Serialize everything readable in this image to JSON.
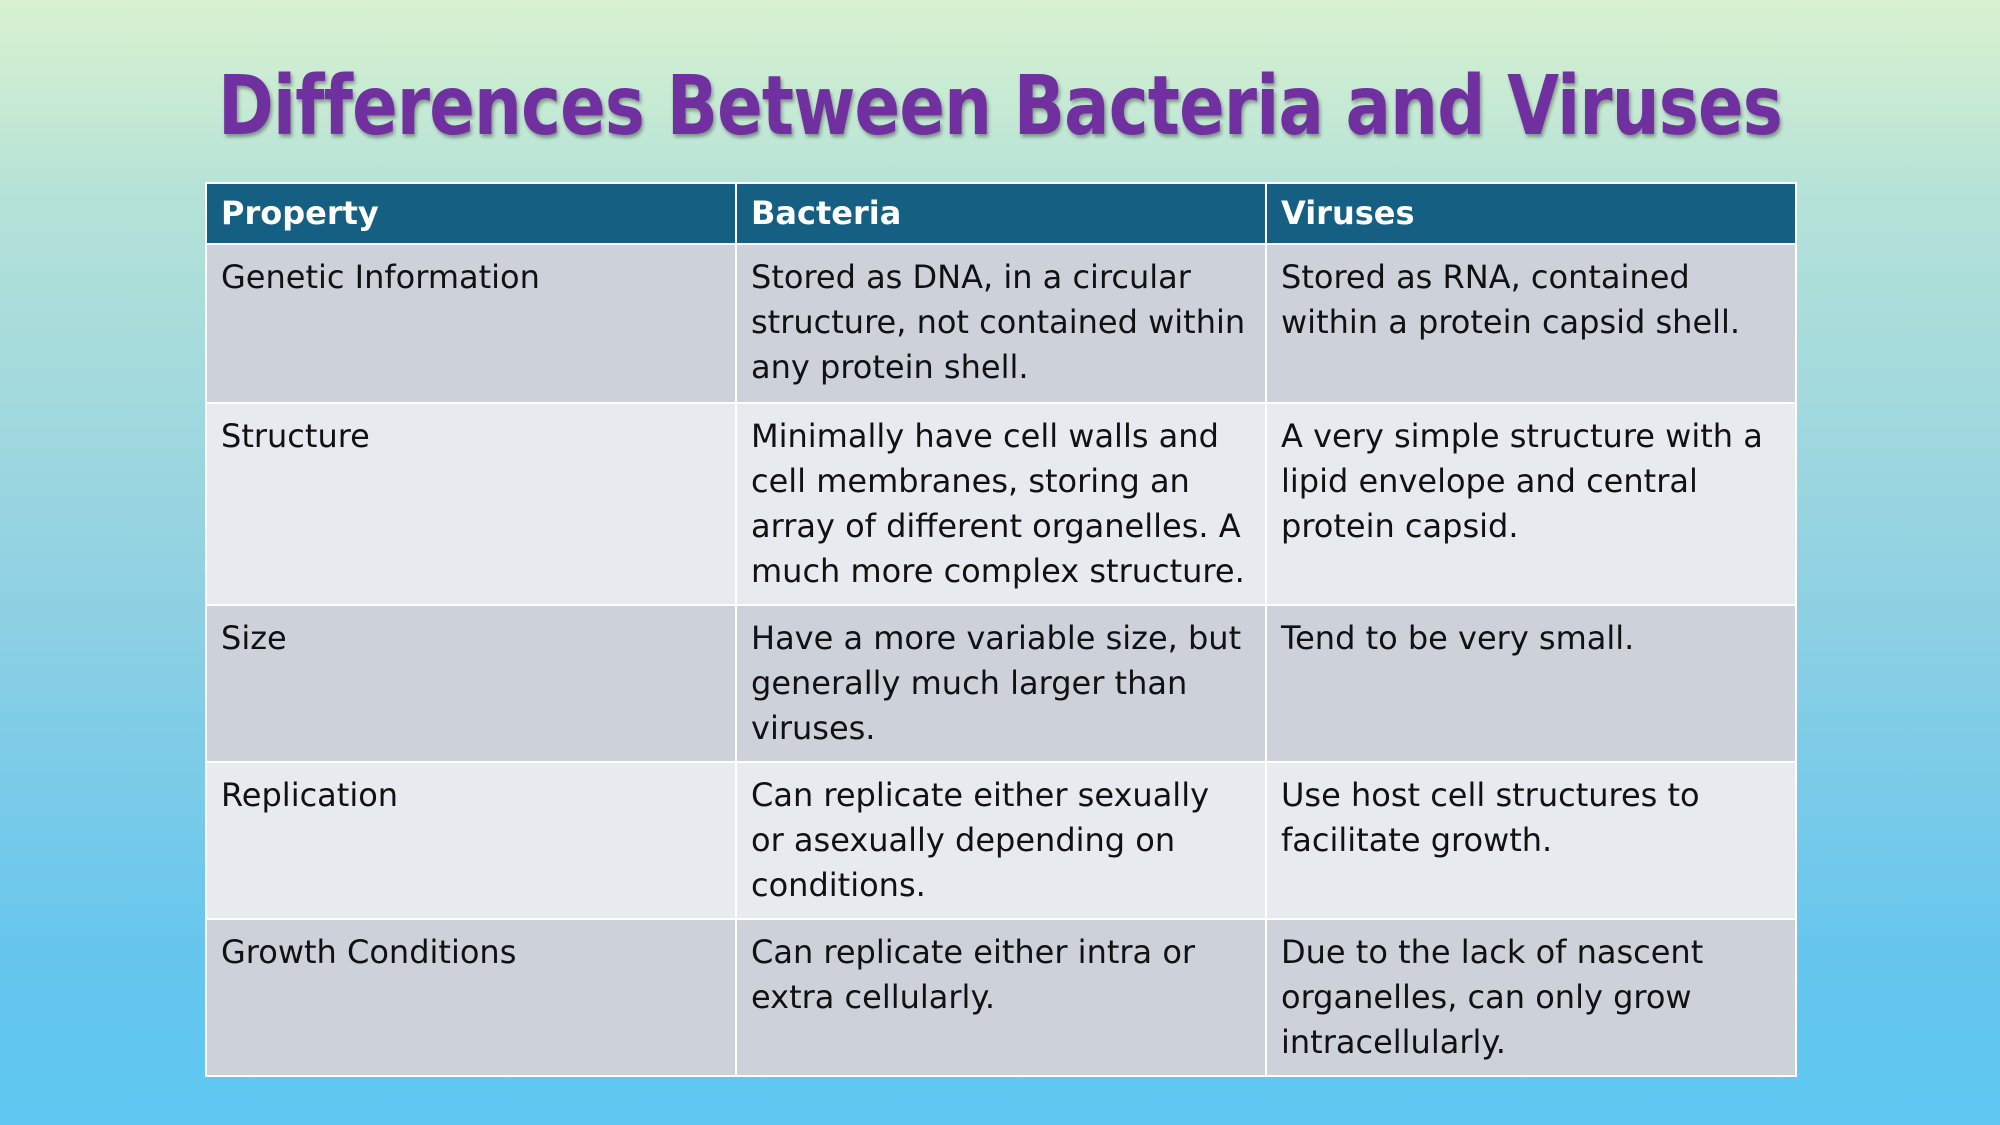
{
  "slide": {
    "title": "Differences Between Bacteria and Viruses"
  },
  "table": {
    "headers": [
      "Property",
      "Bacteria",
      "Viruses"
    ],
    "rows": [
      {
        "property": "Genetic Information",
        "bacteria": "Stored as DNA, in a circular structure, not contained within any protein shell.",
        "viruses": "Stored as RNA, contained within a protein capsid shell."
      },
      {
        "property": "Structure",
        "bacteria": "Minimally have cell walls and cell membranes, storing an array of different organelles. A much more complex structure.",
        "viruses": "A very simple structure with a lipid envelope and central protein capsid."
      },
      {
        "property": "Size",
        "bacteria": "Have a more variable size, but generally much larger than viruses.",
        "viruses": "Tend to be very small."
      },
      {
        "property": "Replication",
        "bacteria": "Can replicate either sexually or asexually depending on conditions.",
        "viruses": "Use host cell structures to facilitate growth."
      },
      {
        "property": "Growth Conditions",
        "bacteria": "Can replicate either intra or extra cellularly.",
        "viruses": "Due to the lack of nascent organelles, can only grow intracellularly."
      }
    ]
  },
  "colors": {
    "title": "#7030a0",
    "header_background": "#156082",
    "row_dark": "#cdd2da",
    "row_light": "#e7eaee"
  }
}
